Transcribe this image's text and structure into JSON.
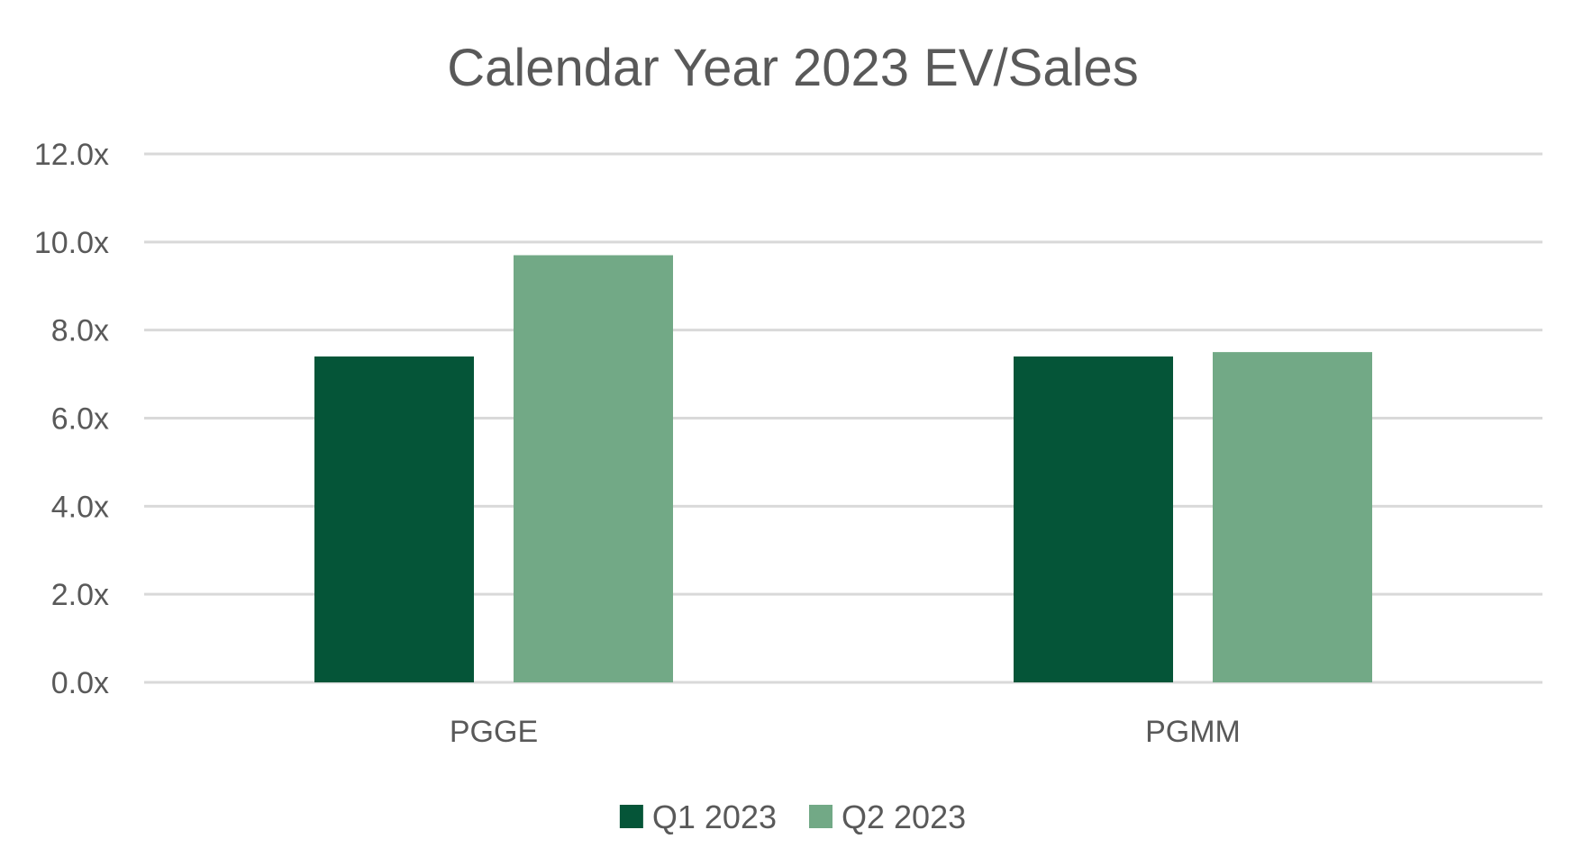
{
  "chart_data": {
    "type": "bar",
    "title": "Calendar Year 2023 EV/Sales",
    "xlabel": "",
    "ylabel": "",
    "categories": [
      "PGGE",
      "PGMM"
    ],
    "series": [
      {
        "name": "Q1 2023",
        "values": [
          7.4,
          7.4
        ],
        "color": "#055538"
      },
      {
        "name": "Q2 2023",
        "values": [
          9.7,
          7.5
        ],
        "color": "#72a986"
      }
    ],
    "ylim": [
      0,
      12
    ],
    "ytick_values": [
      0,
      2,
      4,
      6,
      8,
      10,
      12
    ],
    "ytick_labels": [
      "0.0x",
      "2.0x",
      "4.0x",
      "6.0x",
      "8.0x",
      "10.0x",
      "12.0x"
    ],
    "grid": true,
    "legend_position": "bottom"
  }
}
